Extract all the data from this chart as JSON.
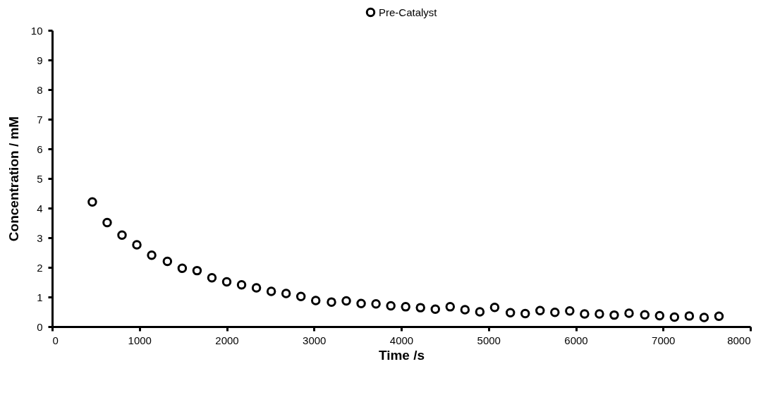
{
  "chart_data": {
    "type": "scatter",
    "xlabel": "Time /s",
    "ylabel": "Concentration / mM",
    "x": [
      460,
      630,
      800,
      970,
      1140,
      1320,
      1490,
      1660,
      1830,
      2000,
      2170,
      2340,
      2510,
      2680,
      2850,
      3020,
      3200,
      3370,
      3540,
      3710,
      3880,
      4050,
      4220,
      4390,
      4560,
      4730,
      4900,
      5070,
      5250,
      5420,
      5590,
      5760,
      5930,
      6100,
      6270,
      6440,
      6610,
      6790,
      6960,
      7130,
      7300,
      7470,
      7640
    ],
    "series": [
      {
        "name": "Pre-Catalyst",
        "color": "#000000",
        "values": [
          4.21,
          3.51,
          3.09,
          2.76,
          2.41,
          2.2,
          1.97,
          1.89,
          1.65,
          1.51,
          1.41,
          1.31,
          1.19,
          1.12,
          1.02,
          0.88,
          0.83,
          0.87,
          0.78,
          0.77,
          0.7,
          0.67,
          0.64,
          0.59,
          0.67,
          0.57,
          0.5,
          0.65,
          0.47,
          0.44,
          0.54,
          0.48,
          0.53,
          0.43,
          0.43,
          0.39,
          0.45,
          0.4,
          0.37,
          0.32,
          0.36,
          0.31,
          0.35
        ]
      }
    ],
    "xlim": [
      0,
      8000
    ],
    "xticks": [
      0,
      1000,
      2000,
      3000,
      4000,
      5000,
      6000,
      7000,
      8000
    ],
    "ylim": [
      0,
      10
    ],
    "yticks": [
      0,
      1,
      2,
      3,
      4,
      5,
      6,
      7,
      8,
      9,
      10
    ],
    "grid": false,
    "legend": "top",
    "marker": "circle"
  }
}
